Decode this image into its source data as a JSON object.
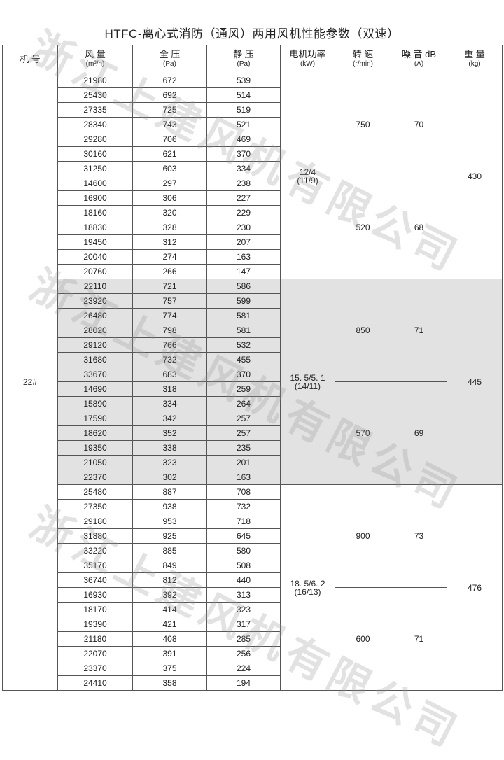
{
  "title": "HTFC-离心式消防（通风）两用风机性能参数（双速）",
  "watermark": "浙江上建风机有限公司",
  "headers": [
    {
      "label": "机 号",
      "unit": ""
    },
    {
      "label": "风 量",
      "unit": "(m³/h)"
    },
    {
      "label": "全 压",
      "unit": "(Pa)"
    },
    {
      "label": "静 压",
      "unit": "(Pa)"
    },
    {
      "label": "电机功率",
      "unit": "(kW)"
    },
    {
      "label": "转 速",
      "unit": "(r/min)"
    },
    {
      "label": "噪 音 dB",
      "unit": "(A)"
    },
    {
      "label": "重 量",
      "unit": "(kg)"
    }
  ],
  "model": "22#",
  "groups": [
    {
      "power": "12/4",
      "power_alt": "(11/9)",
      "weight": "430",
      "shaded": false,
      "speeds": [
        {
          "speed": "750",
          "noise": "70",
          "rows": [
            [
              "21980",
              "672",
              "539"
            ],
            [
              "25430",
              "692",
              "514"
            ],
            [
              "27335",
              "725",
              "519"
            ],
            [
              "28340",
              "743",
              "521"
            ],
            [
              "29280",
              "706",
              "469"
            ],
            [
              "30160",
              "621",
              "370"
            ],
            [
              "31250",
              "603",
              "334"
            ]
          ]
        },
        {
          "speed": "520",
          "noise": "68",
          "rows": [
            [
              "14600",
              "297",
              "238"
            ],
            [
              "16900",
              "306",
              "227"
            ],
            [
              "18160",
              "320",
              "229"
            ],
            [
              "18830",
              "328",
              "230"
            ],
            [
              "19450",
              "312",
              "207"
            ],
            [
              "20040",
              "274",
              "163"
            ],
            [
              "20760",
              "266",
              "147"
            ]
          ]
        }
      ]
    },
    {
      "power": "15. 5/5. 1",
      "power_alt": "(14/11)",
      "weight": "445",
      "shaded": true,
      "speeds": [
        {
          "speed": "850",
          "noise": "71",
          "rows": [
            [
              "22110",
              "721",
              "586"
            ],
            [
              "23920",
              "757",
              "599"
            ],
            [
              "26480",
              "774",
              "581"
            ],
            [
              "28020",
              "798",
              "581"
            ],
            [
              "29120",
              "766",
              "532"
            ],
            [
              "31680",
              "732",
              "455"
            ],
            [
              "33670",
              "683",
              "370"
            ]
          ]
        },
        {
          "speed": "570",
          "noise": "69",
          "rows": [
            [
              "14690",
              "318",
              "259"
            ],
            [
              "15890",
              "334",
              "264"
            ],
            [
              "17590",
              "342",
              "257"
            ],
            [
              "18620",
              "352",
              "257"
            ],
            [
              "19350",
              "338",
              "235"
            ],
            [
              "21050",
              "323",
              "201"
            ],
            [
              "22370",
              "302",
              "163"
            ]
          ]
        }
      ]
    },
    {
      "power": "18. 5/6. 2",
      "power_alt": "(16/13)",
      "weight": "476",
      "shaded": false,
      "speeds": [
        {
          "speed": "900",
          "noise": "73",
          "rows": [
            [
              "25480",
              "887",
              "708"
            ],
            [
              "27350",
              "938",
              "732"
            ],
            [
              "29180",
              "953",
              "718"
            ],
            [
              "31880",
              "925",
              "645"
            ],
            [
              "33220",
              "885",
              "580"
            ],
            [
              "35170",
              "849",
              "508"
            ],
            [
              "36740",
              "812",
              "440"
            ]
          ]
        },
        {
          "speed": "600",
          "noise": "71",
          "rows": [
            [
              "16930",
              "392",
              "313"
            ],
            [
              "18170",
              "414",
              "323"
            ],
            [
              "19390",
              "421",
              "317"
            ],
            [
              "21180",
              "408",
              "285"
            ],
            [
              "22070",
              "391",
              "256"
            ],
            [
              "23370",
              "375",
              "224"
            ],
            [
              "24410",
              "358",
              "194"
            ]
          ]
        }
      ]
    }
  ]
}
